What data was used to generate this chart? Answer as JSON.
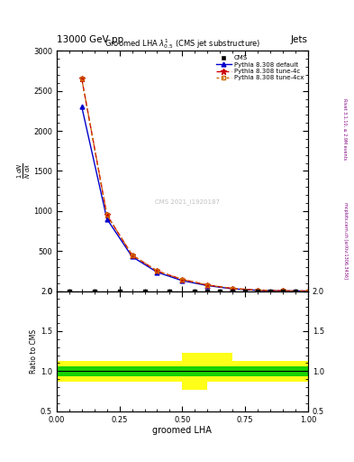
{
  "title_top": "13000 GeV pp",
  "title_right": "Jets",
  "plot_title": "Groomed LHA $\\lambda^{1}_{0.5}$ (CMS jet substructure)",
  "xlabel": "groomed LHA",
  "ylabel_main": "$\\frac{1}{N}\\frac{dN}{d\\lambda}$",
  "ylabel_ratio": "Ratio to CMS",
  "right_label_top": "Rivet 3.1.10, ≥ 2.9M events",
  "right_label_bottom": "mcplots.cern.ch [arXiv:1306.3436]",
  "watermark": "CMS 2021_I1920187",
  "pythia_default_x": [
    0.1,
    0.2,
    0.3,
    0.4,
    0.5,
    0.6,
    0.7,
    0.8,
    0.9,
    1.0
  ],
  "pythia_default_y": [
    2300,
    900,
    430,
    235,
    130,
    68,
    28,
    9,
    2,
    0.3
  ],
  "pythia_4c_x": [
    0.1,
    0.2,
    0.3,
    0.4,
    0.5,
    0.6,
    0.7,
    0.8,
    0.9,
    1.0
  ],
  "pythia_4c_y": [
    2650,
    950,
    450,
    250,
    145,
    75,
    33,
    11,
    3,
    0.4
  ],
  "pythia_4cx_x": [
    0.1,
    0.2,
    0.3,
    0.4,
    0.5,
    0.6,
    0.7,
    0.8,
    0.9,
    1.0
  ],
  "pythia_4cx_y": [
    2650,
    950,
    450,
    250,
    145,
    75,
    33,
    11,
    3,
    0.4
  ],
  "cms_x": [
    0.05,
    0.15,
    0.25,
    0.35,
    0.45,
    0.55,
    0.6,
    0.65,
    0.7,
    0.75,
    0.8,
    0.85,
    0.9,
    0.95
  ],
  "cms_y": [
    0,
    0,
    0,
    0,
    0,
    0,
    0,
    0,
    0,
    0,
    0,
    0,
    0,
    0
  ],
  "ratio_xbins": [
    0.0,
    0.1,
    0.2,
    0.3,
    0.4,
    0.5,
    0.6,
    0.7,
    0.8,
    0.9,
    1.0
  ],
  "ratio_green_lo": [
    0.94,
    0.94,
    0.94,
    0.94,
    0.94,
    0.94,
    0.94,
    0.94,
    0.94,
    0.94
  ],
  "ratio_green_hi": [
    1.06,
    1.06,
    1.06,
    1.06,
    1.06,
    1.06,
    1.06,
    1.06,
    1.06,
    1.06
  ],
  "ratio_yellow_lo": [
    0.87,
    0.87,
    0.87,
    0.87,
    0.87,
    0.77,
    0.87,
    0.87,
    0.87,
    0.87
  ],
  "ratio_yellow_hi": [
    1.13,
    1.13,
    1.13,
    1.13,
    1.13,
    1.23,
    1.23,
    1.13,
    1.13,
    1.13
  ],
  "color_cms": "#000000",
  "color_default": "#0000cc",
  "color_4c": "#cc0000",
  "color_4cx": "#cc6600",
  "ylim_main": [
    0,
    3000
  ],
  "ylim_ratio": [
    0.5,
    2.0
  ],
  "xlim": [
    0.0,
    1.0
  ]
}
